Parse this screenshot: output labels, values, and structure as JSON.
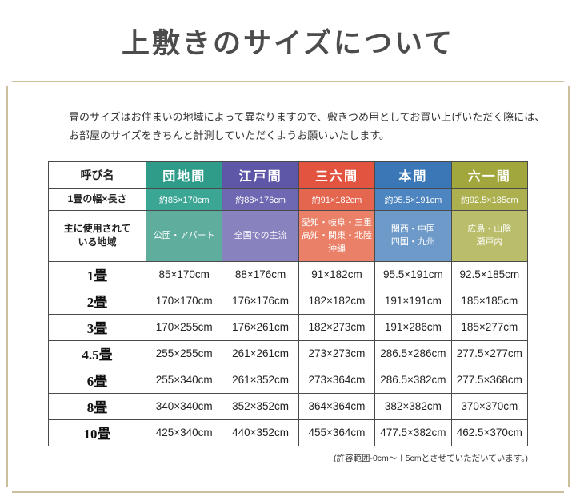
{
  "page": {
    "title": "上敷きのサイズについて",
    "intro_line1": "畳のサイズはお住まいの地域によって異なりますので、敷きつめ用としてお買い上げいただく際には、",
    "intro_line2": "お部屋のサイズをきちんと計測していただくようお願いいたします。",
    "footnote": "(許容範囲-0cm〜＋5cmとさせていただいています。)"
  },
  "colors": {
    "frame_border": "#ccbf9b",
    "danchima": "#2e9c89",
    "edoma": "#5e57a7",
    "sabrokuma": "#e25440",
    "honma": "#3b77b7",
    "rokuichima": "#a1a73c"
  },
  "table": {
    "corner_header": "呼び名",
    "width_row_label": "1畳の幅×長さ",
    "region_row_label": "主に使用されて\nいる地域",
    "columns": [
      "団地間",
      "江戸間",
      "三六間",
      "本間",
      "六一間"
    ],
    "widths": [
      "約85×170cm",
      "約88×176cm",
      "約91×182cm",
      "約95.5×191cm",
      "約92.5×185cm"
    ],
    "regions": [
      "公団・アパート",
      "全国での主流",
      "愛知・岐阜・三重\n高知・関東・北陸\n沖縄",
      "関西・中国\n四国・九州",
      "広島・山陰\n瀬戸内"
    ],
    "size_rows": [
      {
        "label": "1畳",
        "values": [
          "85×170cm",
          "88×176cm",
          "91×182cm",
          "95.5×191cm",
          "92.5×185cm"
        ]
      },
      {
        "label": "2畳",
        "values": [
          "170×170cm",
          "176×176cm",
          "182×182cm",
          "191×191cm",
          "185×185cm"
        ]
      },
      {
        "label": "3畳",
        "values": [
          "170×255cm",
          "176×261cm",
          "182×273cm",
          "191×286cm",
          "185×277cm"
        ]
      },
      {
        "label": "4.5畳",
        "values": [
          "255×255cm",
          "261×261cm",
          "273×273cm",
          "286.5×286cm",
          "277.5×277cm"
        ]
      },
      {
        "label": "6畳",
        "values": [
          "255×340cm",
          "261×352cm",
          "273×364cm",
          "286.5×382cm",
          "277.5×368cm"
        ]
      },
      {
        "label": "8畳",
        "values": [
          "340×340cm",
          "352×352cm",
          "364×364cm",
          "382×382cm",
          "370×370cm"
        ]
      },
      {
        "label": "10畳",
        "values": [
          "425×340cm",
          "440×352cm",
          "455×364cm",
          "477.5×382cm",
          "462.5×370cm"
        ]
      }
    ]
  }
}
